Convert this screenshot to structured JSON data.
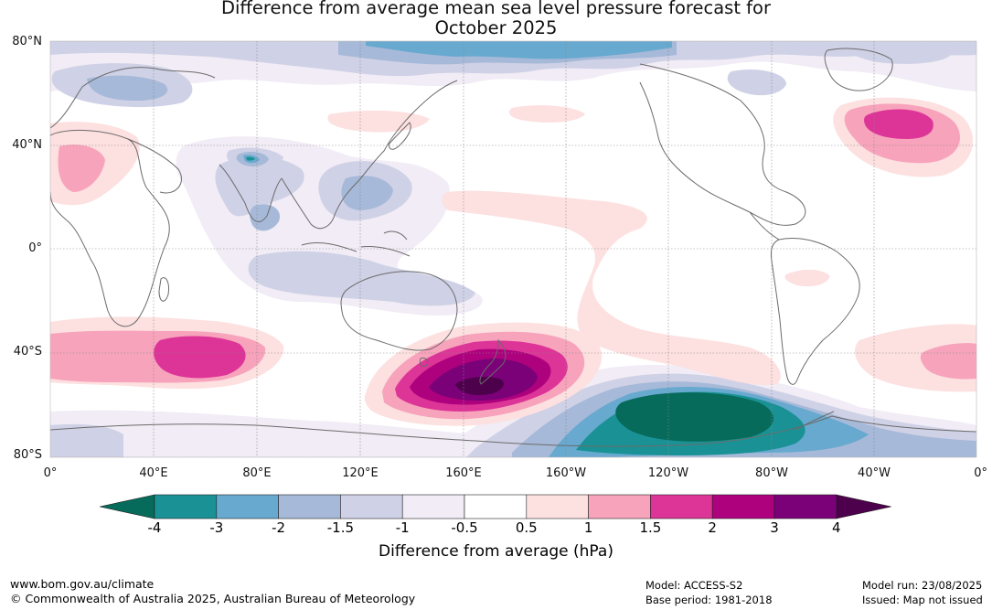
{
  "title": {
    "line1": "Difference from average mean sea level pressure forecast for",
    "line2": "October 2025"
  },
  "map": {
    "lat_labels": [
      "80°N",
      "40°N",
      "0°",
      "40°S",
      "80°S"
    ],
    "lon_labels": [
      "0°",
      "40°E",
      "80°E",
      "120°E",
      "160°E",
      "160°W",
      "120°W",
      "80°W",
      "40°W",
      "0°"
    ],
    "colors": {
      "ocean_bg": "#ffffff",
      "coastline": "#6b6b6b",
      "gridline": "#888888"
    },
    "anomaly_regions": [
      {
        "name": "Arctic North Pacific low",
        "level": "-3"
      },
      {
        "name": "North Atlantic high",
        "level": "2"
      },
      {
        "name": "New Zealand high",
        "level": "4"
      },
      {
        "name": "Amundsen Sea low",
        "level": "-4"
      },
      {
        "name": "South Indian Ocean high",
        "level": "2"
      },
      {
        "name": "South Atlantic high",
        "level": "1.5"
      },
      {
        "name": "Mediterranean high",
        "level": "1.5"
      },
      {
        "name": "Central Asia low",
        "level": "-4"
      }
    ]
  },
  "colorbar": {
    "ticks": [
      "-4",
      "-3",
      "-2",
      "-1.5",
      "-1",
      "-0.5",
      "0.5",
      "1",
      "1.5",
      "2",
      "3",
      "4"
    ],
    "colors": [
      "#066b5a",
      "#1a9295",
      "#68a9cf",
      "#a6b9d8",
      "#cfd1e6",
      "#f1ecf5",
      "#ffffff",
      "#fde0e0",
      "#f7a3bb",
      "#dd3497",
      "#ae017e",
      "#7a0177",
      "#4d004b"
    ],
    "label": "Difference from average (hPa)"
  },
  "footer": {
    "url": "www.bom.gov.au/climate",
    "copyright": "© Commonwealth of Australia 2025, Australian Bureau of Meteorology",
    "model": "Model: ACCESS-S2",
    "base_period": "Base period: 1981-2018",
    "model_run": "Model run: 23/08/2025",
    "issued": "Issued: Map not issued"
  }
}
